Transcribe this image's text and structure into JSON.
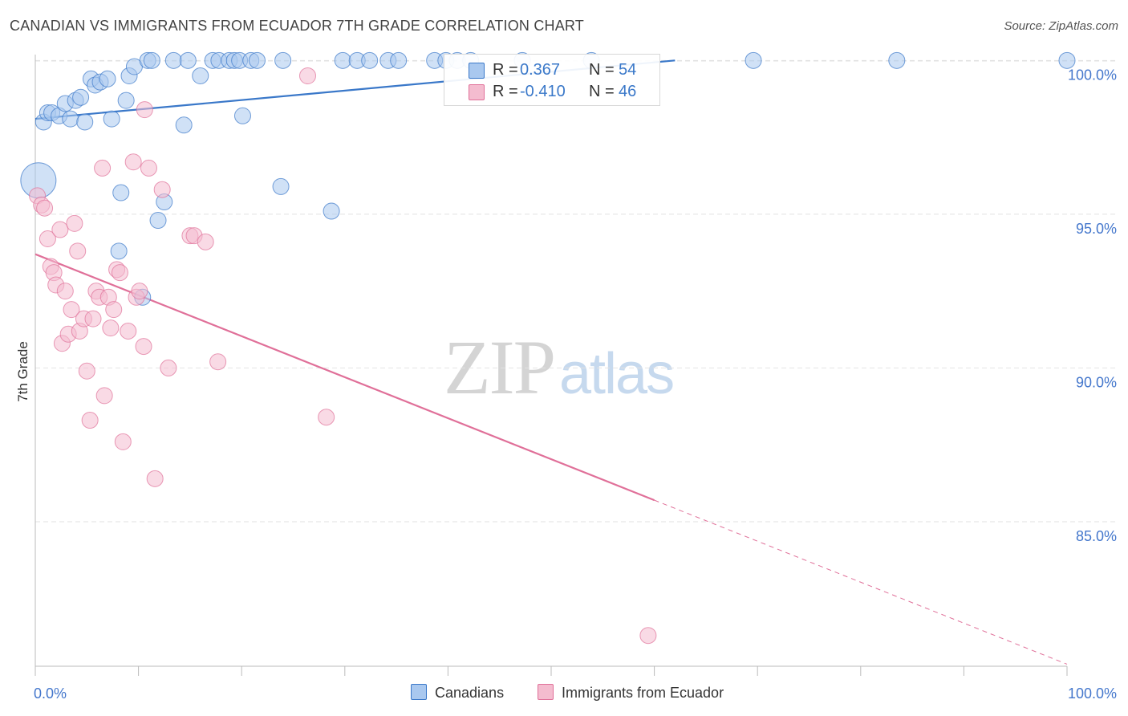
{
  "title": "CANADIAN VS IMMIGRANTS FROM ECUADOR 7TH GRADE CORRELATION CHART",
  "source": "Source: ZipAtlas.com",
  "watermark": {
    "zip": "ZIP",
    "atlas": "atlas"
  },
  "colors": {
    "blue": "#3a78c9",
    "blue_fill": "#a9c8ef",
    "pink": "#e07099",
    "pink_fill": "#f4bccf",
    "axis_text": "#4477cc",
    "grid": "#e2e2e2"
  },
  "legend": {
    "rows": [
      {
        "r_label": "R =",
        "r_value": "0.367",
        "n_label": "N =",
        "n_value": "54"
      },
      {
        "r_label": "R =",
        "r_value": "-0.410",
        "n_label": "N =",
        "n_value": "46"
      }
    ]
  },
  "bottom_legend": {
    "canadians": "Canadians",
    "ecuador": "Immigrants from Ecuador"
  },
  "chart_data": {
    "type": "scatter",
    "title": "CANADIAN VS IMMIGRANTS FROM ECUADOR 7TH GRADE CORRELATION CHART",
    "xlabel": "",
    "ylabel": "7th Grade",
    "xlim": [
      0,
      100
    ],
    "ylim": [
      80.3,
      100.4
    ],
    "x_tick_labels": [
      "0.0%",
      "100.0%"
    ],
    "y_ticks": [
      {
        "value": 100,
        "label": "100.0%"
      },
      {
        "value": 95,
        "label": "95.0%"
      },
      {
        "value": 90,
        "label": "90.0%"
      },
      {
        "value": 85,
        "label": "85.0%"
      }
    ],
    "grid": true,
    "legend_position": "top-center",
    "series": [
      {
        "name": "Canadians",
        "color": "#3a78c9",
        "r": 0.367,
        "n": 54,
        "trend": {
          "x1": 0,
          "y1": 98.1,
          "x2": 62,
          "y2": 100.0,
          "dashed_to": 100
        },
        "points": [
          [
            0.3,
            96.1,
            22
          ],
          [
            0.8,
            98.0,
            10
          ],
          [
            1.2,
            98.3,
            10
          ],
          [
            1.6,
            98.3,
            10
          ],
          [
            2.3,
            98.2,
            10
          ],
          [
            2.9,
            98.6,
            10
          ],
          [
            3.4,
            98.1,
            10
          ],
          [
            3.9,
            98.7,
            10
          ],
          [
            4.4,
            98.8,
            10
          ],
          [
            4.8,
            98.0,
            10
          ],
          [
            5.4,
            99.4,
            10
          ],
          [
            5.8,
            99.2,
            10
          ],
          [
            6.3,
            99.3,
            10
          ],
          [
            7.0,
            99.4,
            10
          ],
          [
            7.4,
            98.1,
            10
          ],
          [
            8.1,
            93.8,
            10
          ],
          [
            8.3,
            95.7,
            10
          ],
          [
            8.8,
            98.7,
            10
          ],
          [
            9.1,
            99.5,
            10
          ],
          [
            9.6,
            99.8,
            10
          ],
          [
            10.4,
            92.3,
            10
          ],
          [
            10.9,
            100.0,
            10
          ],
          [
            11.3,
            100.0,
            10
          ],
          [
            11.9,
            94.8,
            10
          ],
          [
            12.5,
            95.4,
            10
          ],
          [
            13.4,
            100.0,
            10
          ],
          [
            14.4,
            97.9,
            10
          ],
          [
            14.8,
            100.0,
            10
          ],
          [
            16.0,
            99.5,
            10
          ],
          [
            17.2,
            100.0,
            10
          ],
          [
            17.8,
            100.0,
            10
          ],
          [
            18.8,
            100.0,
            10
          ],
          [
            19.3,
            100.0,
            10
          ],
          [
            19.8,
            100.0,
            10
          ],
          [
            20.1,
            98.2,
            10
          ],
          [
            20.9,
            100.0,
            10
          ],
          [
            21.5,
            100.0,
            10
          ],
          [
            24.0,
            100.0,
            10
          ],
          [
            23.8,
            95.9,
            10
          ],
          [
            28.7,
            95.1,
            10
          ],
          [
            29.8,
            100.0,
            10
          ],
          [
            31.2,
            100.0,
            10
          ],
          [
            32.4,
            100.0,
            10
          ],
          [
            34.2,
            100.0,
            10
          ],
          [
            35.2,
            100.0,
            10
          ],
          [
            38.7,
            100.0,
            10
          ],
          [
            39.8,
            100.0,
            10
          ],
          [
            40.9,
            100.0,
            10
          ],
          [
            42.2,
            100.0,
            10
          ],
          [
            47.2,
            100.0,
            10
          ],
          [
            53.9,
            100.0,
            10
          ],
          [
            69.6,
            100.0,
            10
          ],
          [
            83.5,
            100.0,
            10
          ],
          [
            100.0,
            100.0,
            10
          ]
        ]
      },
      {
        "name": "Immigrants from Ecuador",
        "color": "#e07099",
        "r": -0.41,
        "n": 46,
        "trend": {
          "x1": 0,
          "y1": 93.7,
          "x2": 60,
          "y2": 85.7,
          "dashed_to": 100
        },
        "points": [
          [
            0.2,
            95.6,
            10
          ],
          [
            0.6,
            95.3,
            10
          ],
          [
            0.9,
            95.2,
            10
          ],
          [
            1.2,
            94.2,
            10
          ],
          [
            1.5,
            93.3,
            10
          ],
          [
            1.8,
            93.1,
            10
          ],
          [
            2.0,
            92.7,
            10
          ],
          [
            2.4,
            94.5,
            10
          ],
          [
            2.6,
            90.8,
            10
          ],
          [
            2.9,
            92.5,
            10
          ],
          [
            3.2,
            91.1,
            10
          ],
          [
            3.5,
            91.9,
            10
          ],
          [
            3.8,
            94.7,
            10
          ],
          [
            4.1,
            93.8,
            10
          ],
          [
            4.3,
            91.2,
            10
          ],
          [
            4.7,
            91.6,
            10
          ],
          [
            5.0,
            89.9,
            10
          ],
          [
            5.3,
            88.3,
            10
          ],
          [
            5.6,
            91.6,
            10
          ],
          [
            5.9,
            92.5,
            10
          ],
          [
            6.2,
            92.3,
            10
          ],
          [
            6.5,
            96.5,
            10
          ],
          [
            6.7,
            89.1,
            10
          ],
          [
            7.1,
            92.3,
            10
          ],
          [
            7.3,
            91.3,
            10
          ],
          [
            7.6,
            91.9,
            10
          ],
          [
            7.9,
            93.2,
            10
          ],
          [
            8.2,
            93.1,
            10
          ],
          [
            8.5,
            87.6,
            10
          ],
          [
            9.0,
            91.2,
            10
          ],
          [
            9.5,
            96.7,
            10
          ],
          [
            9.8,
            92.3,
            10
          ],
          [
            10.1,
            92.5,
            10
          ],
          [
            10.5,
            90.7,
            10
          ],
          [
            10.6,
            98.4,
            10
          ],
          [
            11.0,
            96.5,
            10
          ],
          [
            11.6,
            86.4,
            10
          ],
          [
            12.3,
            95.8,
            10
          ],
          [
            12.9,
            90.0,
            10
          ],
          [
            15.0,
            94.3,
            10
          ],
          [
            15.4,
            94.3,
            10
          ],
          [
            16.5,
            94.1,
            10
          ],
          [
            17.7,
            90.2,
            10
          ],
          [
            26.4,
            99.5,
            10
          ],
          [
            28.2,
            88.4,
            10
          ],
          [
            59.4,
            81.3,
            10
          ]
        ]
      }
    ]
  }
}
